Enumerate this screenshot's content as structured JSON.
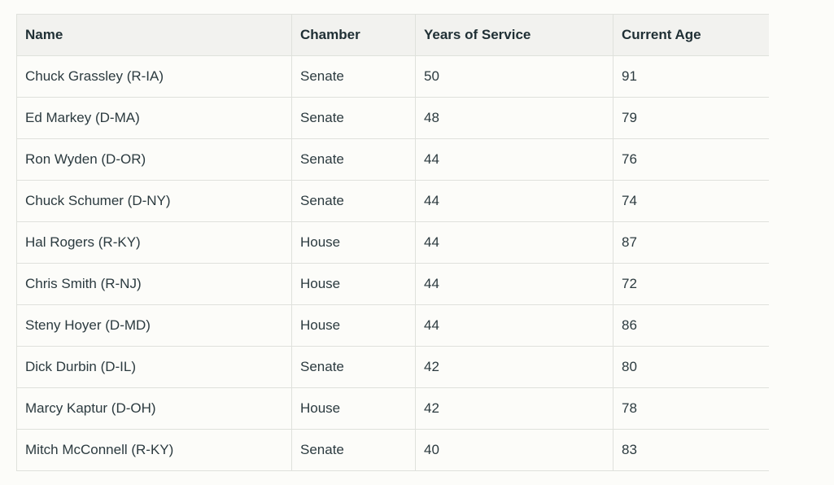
{
  "table": {
    "headers": [
      "Name",
      "Chamber",
      "Years of Service",
      "Current Age"
    ],
    "rows": [
      [
        "Chuck Grassley (R-IA)",
        "Senate",
        "50",
        "91"
      ],
      [
        "Ed Markey (D-MA)",
        "Senate",
        "48",
        "79"
      ],
      [
        "Ron Wyden (D-OR)",
        "Senate",
        "44",
        "76"
      ],
      [
        "Chuck Schumer (D-NY)",
        "Senate",
        "44",
        "74"
      ],
      [
        "Hal Rogers (R-KY)",
        "House",
        "44",
        "87"
      ],
      [
        "Chris Smith (R-NJ)",
        "House",
        "44",
        "72"
      ],
      [
        "Steny Hoyer (D-MD)",
        "House",
        "44",
        "86"
      ],
      [
        "Dick Durbin (D-IL)",
        "Senate",
        "42",
        "80"
      ],
      [
        "Marcy Kaptur (D-OH)",
        "House",
        "42",
        "78"
      ],
      [
        "Mitch McConnell (R-KY)",
        "Senate",
        "40",
        "83"
      ]
    ]
  }
}
